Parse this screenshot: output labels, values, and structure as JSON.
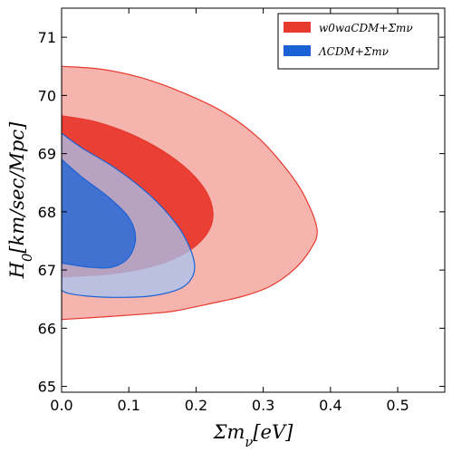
{
  "chart_data": {
    "type": "contour",
    "xlabel": "Σm_ν[eV]",
    "ylabel": "H_0[km/sec/Mpc]",
    "xlim": [
      0.0,
      0.57
    ],
    "ylim": [
      64.9,
      71.5
    ],
    "xticks": [
      0.0,
      0.1,
      0.2,
      0.3,
      0.4,
      0.5
    ],
    "xtick_labels": [
      "0.0",
      "0.1",
      "0.2",
      "0.3",
      "0.4",
      "0.5"
    ],
    "yticks": [
      65,
      66,
      67,
      68,
      69,
      70,
      71
    ],
    "ytick_labels": [
      "65",
      "66",
      "67",
      "68",
      "69",
      "70",
      "71"
    ],
    "grid": false,
    "legend_position": "top-right",
    "series": [
      {
        "name": "w0waCDM+Σmν",
        "color": "#e8392e",
        "light_color": "#f4b0aa",
        "contour_95": [
          [
            0,
            70.5
          ],
          [
            0.06,
            70.45
          ],
          [
            0.12,
            70.3
          ],
          [
            0.18,
            70.05
          ],
          [
            0.24,
            69.72
          ],
          [
            0.29,
            69.3
          ],
          [
            0.33,
            68.8
          ],
          [
            0.36,
            68.3
          ],
          [
            0.38,
            67.7
          ],
          [
            0.37,
            67.35
          ],
          [
            0.345,
            67.0
          ],
          [
            0.31,
            66.72
          ],
          [
            0.27,
            66.55
          ],
          [
            0.22,
            66.42
          ],
          [
            0.17,
            66.3
          ],
          [
            0.13,
            66.25
          ],
          [
            0.07,
            66.2
          ],
          [
            0,
            66.15
          ]
        ],
        "contour_68": [
          [
            0,
            69.65
          ],
          [
            0.05,
            69.55
          ],
          [
            0.1,
            69.35
          ],
          [
            0.15,
            69.05
          ],
          [
            0.19,
            68.7
          ],
          [
            0.215,
            68.35
          ],
          [
            0.225,
            68.0
          ],
          [
            0.22,
            67.7
          ],
          [
            0.2,
            67.42
          ],
          [
            0.165,
            67.18
          ],
          [
            0.12,
            67.02
          ],
          [
            0.07,
            66.93
          ],
          [
            0.03,
            66.9
          ],
          [
            0,
            66.88
          ]
        ]
      },
      {
        "name": "ΛCDM+Σmν",
        "color": "#1a62d6",
        "light_color": "#a7c4f1",
        "contour_95": [
          [
            0,
            69.35
          ],
          [
            0.03,
            69.1
          ],
          [
            0.08,
            68.75
          ],
          [
            0.13,
            68.3
          ],
          [
            0.17,
            67.8
          ],
          [
            0.19,
            67.4
          ],
          [
            0.198,
            67.05
          ],
          [
            0.19,
            66.8
          ],
          [
            0.17,
            66.65
          ],
          [
            0.13,
            66.55
          ],
          [
            0.08,
            66.53
          ],
          [
            0.04,
            66.55
          ],
          [
            0.01,
            66.6
          ],
          [
            0,
            66.65
          ]
        ],
        "contour_68": [
          [
            0,
            68.9
          ],
          [
            0.03,
            68.6
          ],
          [
            0.07,
            68.25
          ],
          [
            0.1,
            67.9
          ],
          [
            0.11,
            67.55
          ],
          [
            0.1,
            67.22
          ],
          [
            0.075,
            67.05
          ],
          [
            0.04,
            67.05
          ],
          [
            0,
            67.12
          ]
        ]
      }
    ]
  }
}
